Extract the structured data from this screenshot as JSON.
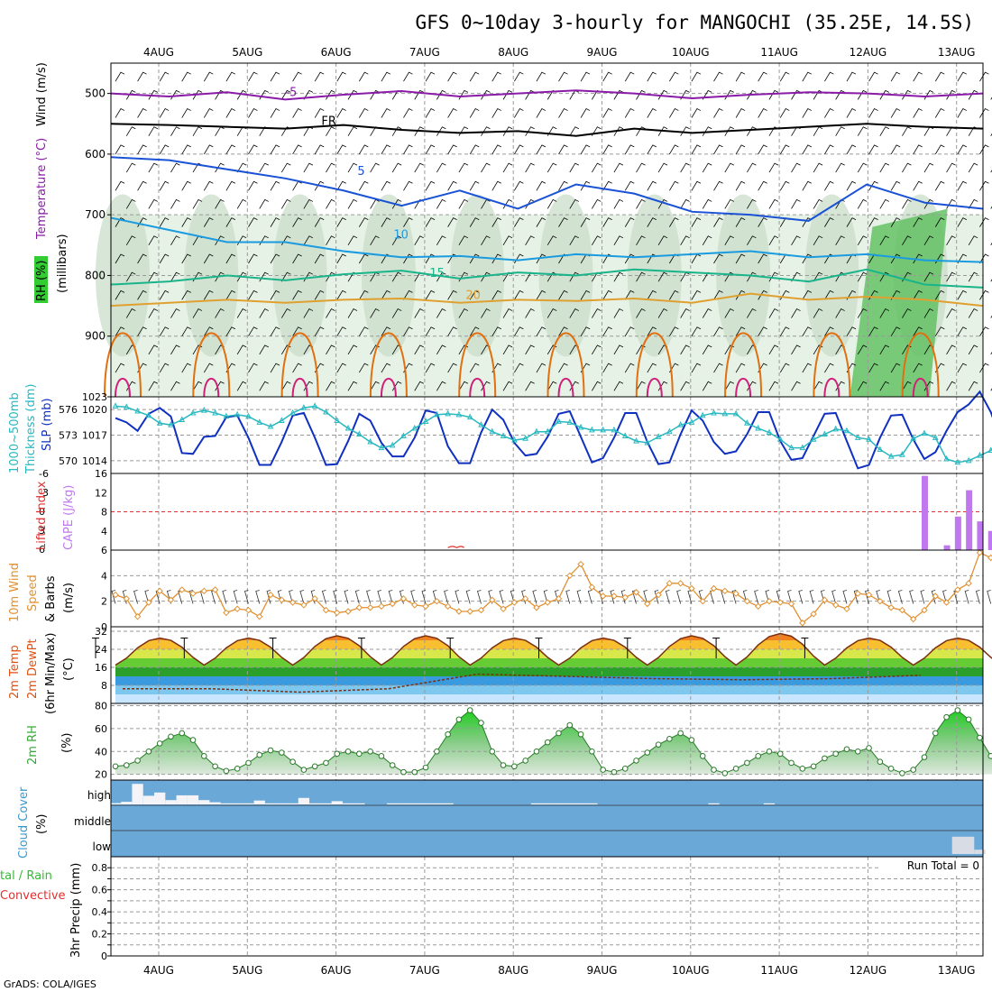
{
  "title": "GFS 0~10day 3-hourly for MANGOCHI (35.25E, 14.5S)",
  "footer": "GrADS: COLA/IGES",
  "dates": [
    "4AUG",
    "5AUG",
    "6AUG",
    "7AUG",
    "8AUG",
    "9AUG",
    "10AUG",
    "11AUG",
    "12AUG",
    "13AUG"
  ],
  "colors": {
    "frame": "#000000",
    "grid": "#9a9a9a",
    "purple": "#8a1aa8",
    "black": "#000000",
    "blue": "#1a52d6",
    "skyblue": "#1a9be0",
    "teal": "#19b48a",
    "orange": "#e0a030",
    "darkorange": "#e07010",
    "magenta": "#d0207a",
    "cyan": "#27b8c0",
    "navy": "#1030c0",
    "cape": "#c078ee",
    "wind": "#e09030",
    "cloud": "#6aa8d8",
    "rh": "#33bb33"
  },
  "chart_data": [
    {
      "type": "heatmap",
      "name": "pressure-level cross section",
      "ylabel_parts": [
        "Wind (m/s)",
        "Temperature (°C)",
        "RH (%)"
      ],
      "ylabel2": "(millibars)",
      "ylim": [
        1000,
        450
      ],
      "yticks": [
        500,
        600,
        700,
        800,
        900,
        1000
      ],
      "contours": [
        {
          "label": "-5",
          "level": -5,
          "color": "purple",
          "pressure": [
            500,
            505,
            498,
            510,
            502,
            496,
            505,
            500,
            495,
            500,
            508,
            502,
            498,
            500,
            505,
            500
          ]
        },
        {
          "label": "FR",
          "level": 0,
          "color": "black",
          "pressure": [
            550,
            552,
            555,
            558,
            552,
            560,
            565,
            562,
            570,
            558,
            565,
            560,
            555,
            550,
            555,
            558
          ]
        },
        {
          "label": "5",
          "level": 5,
          "color": "blue",
          "pressure": [
            605,
            610,
            625,
            640,
            660,
            685,
            660,
            690,
            650,
            665,
            695,
            700,
            710,
            650,
            680,
            690
          ]
        },
        {
          "label": "10",
          "level": 10,
          "color": "skyblue",
          "pressure": [
            705,
            725,
            745,
            745,
            760,
            770,
            768,
            775,
            765,
            770,
            765,
            760,
            770,
            765,
            775,
            778
          ]
        },
        {
          "label": "15",
          "level": 15,
          "color": "teal",
          "pressure": [
            815,
            810,
            800,
            808,
            798,
            792,
            805,
            795,
            800,
            790,
            795,
            800,
            810,
            790,
            815,
            820
          ]
        },
        {
          "label": "20",
          "level": 20,
          "color": "orange",
          "pressure": [
            850,
            845,
            840,
            845,
            840,
            838,
            845,
            840,
            842,
            838,
            845,
            830,
            840,
            835,
            840,
            850
          ]
        }
      ],
      "rh_contours": [
        "10",
        "30"
      ]
    },
    {
      "type": "line",
      "name": "thickness and SLP",
      "ylabel_left": "Thickness 1000~500mb (dm)",
      "ylabel_right": "SLP (mb)",
      "left_ticks": [
        570,
        573,
        576
      ],
      "right_ticks": [
        1014,
        1017,
        1020
      ],
      "left_top_label": "1023",
      "ylim_left": [
        568.5,
        577.5
      ],
      "series": [
        {
          "name": "SLP (mb)",
          "color": "navy",
          "axis": "right",
          "values": [
            1019,
            1018.5,
            1017.5,
            1019.5,
            1020.2,
            1019.2,
            1014.9,
            1014.8,
            1016.8,
            1016.9,
            1019.1,
            1019.3,
            1016.7,
            1013.5,
            1013.5,
            1016.2,
            1019.3,
            1019.6,
            1016.7,
            1013.5,
            1013.6,
            1016.3,
            1019.5,
            1018.7,
            1016.1,
            1014.5,
            1014.5,
            1016.7,
            1019.9,
            1019.6,
            1015.7,
            1013.7,
            1013.7,
            1017.3,
            1020,
            1018.8,
            1016.1,
            1014.6,
            1014.8,
            1016.8,
            1019.5,
            1019.8,
            1016.8,
            1013.8,
            1014.3,
            1016.7,
            1019.6,
            1019.6,
            1016.2,
            1013.6,
            1013.8,
            1017.1,
            1019.9,
            1018.7,
            1016.2,
            1014.8,
            1015.1,
            1017.1,
            1019.7,
            1019.7,
            1016.3,
            1014.1,
            1014.3,
            1016.9,
            1019.5,
            1019.6,
            1016.3,
            1013.1,
            1013.5,
            1016.7,
            1019.3,
            1019.4,
            1016.5,
            1014.2,
            1015,
            1017.5,
            1019.7,
            1020.6,
            1022.1,
            1019.7,
            1016,
            1016.8,
            1018.2,
            1019.8,
            1020.2
          ]
        },
        {
          "name": "1000-500mb thickness (dm)",
          "color": "cyan",
          "axis": "left",
          "values": [
            576.4,
            576.3,
            575.8,
            575.3,
            574.4,
            574.2,
            574.8,
            575.6,
            575.9,
            575.6,
            575.2,
            575.4,
            575.2,
            574.5,
            574,
            574.7,
            575.6,
            576.2,
            576.4,
            575.7,
            574.7,
            573.8,
            573.1,
            572.2,
            571.5,
            571.8,
            572.9,
            573.8,
            574.6,
            575.4,
            575.5,
            575.4,
            575.1,
            574.2,
            573.4,
            572.9,
            572.4,
            572.6,
            573.4,
            573.4,
            574.6,
            574.5,
            573.9,
            573.6,
            573.6,
            573.6,
            572.9,
            572.3,
            572.1,
            572.8,
            573.4,
            574.2,
            574.5,
            575.3,
            575.6,
            575.5,
            575.5,
            574.4,
            573.8,
            573.3,
            572.5,
            571.5,
            571.5,
            572.5,
            573.1,
            573.7,
            573.5,
            572.7,
            572.5,
            571.3,
            570.5,
            570.7,
            572.6,
            573.2,
            572.7,
            570.2,
            569.8,
            570,
            570.6,
            571.2,
            572.6,
            572.1,
            571.4,
            570.9,
            571.1
          ]
        }
      ]
    },
    {
      "type": "bar",
      "name": "lifted index and CAPE",
      "ylabel_left": "Lifted Index",
      "ylabel_right": "CAPE (J/kg)",
      "li_ticks": [
        "6",
        "3",
        "0",
        "-3",
        "-6"
      ],
      "cape_ticks": [
        4,
        8,
        12,
        16
      ],
      "ylim": [
        0,
        16
      ],
      "x_index": [
        73,
        75,
        76,
        77,
        78,
        79
      ],
      "values": [
        15.5,
        1,
        7,
        12.5,
        6,
        4
      ],
      "li_note": "small red marks near 7AUG"
    },
    {
      "type": "line",
      "name": "10m wind",
      "ylabel": "10m Wind Speed & Barbs (m/s)",
      "ylim": [
        0,
        6
      ],
      "yticks": [
        0,
        2,
        4,
        6
      ],
      "values": [
        2.5,
        2.2,
        0.8,
        1.9,
        2.8,
        2.1,
        2.9,
        2.6,
        2.8,
        2.9,
        1.1,
        1.4,
        1.3,
        0.8,
        2.5,
        2.1,
        1.9,
        1.7,
        2.2,
        1.3,
        1.1,
        1.2,
        1.5,
        1.5,
        1.6,
        1.8,
        2.2,
        1.7,
        1.6,
        2.0,
        1.6,
        1.2,
        1.2,
        1.3,
        2.1,
        1.4,
        1.9,
        2.2,
        1.5,
        1.9,
        2.2,
        4.0,
        4.9,
        3.1,
        2.4,
        2.4,
        2.3,
        2.7,
        1.8,
        2.5,
        3.4,
        3.4,
        3.0,
        2.0,
        3.0,
        2.8,
        2.6,
        2.0,
        1.6,
        2.0,
        1.9,
        1.8,
        0.3,
        1.0,
        2.1,
        1.7,
        1.4,
        2.6,
        2.5,
        2.0,
        1.5,
        1.3,
        0.6,
        1.3,
        2.4,
        1.9,
        2.9,
        3.4,
        5.8,
        5.4,
        4.8,
        4.9,
        4.1,
        2.2,
        2.4
      ]
    },
    {
      "type": "area",
      "name": "2m temperature and dewpoint",
      "ylabel": "2m Temp 2m DewPt (6hr Min/Max) (°C)",
      "ylim": [
        0,
        34
      ],
      "yticks": [
        8,
        16,
        24,
        32
      ],
      "temp_peak": [
        29,
        29,
        30,
        30,
        29,
        29,
        30,
        31,
        29
      ],
      "temp_min": 17,
      "dewpoint": [
        6.5,
        6.5,
        5,
        6.5,
        13,
        12,
        11,
        10.5,
        11,
        12.5
      ]
    },
    {
      "type": "area",
      "name": "2m relative humidity",
      "ylabel": "2m RH (%)",
      "ylim": [
        15,
        82
      ],
      "yticks": [
        20,
        40,
        60,
        80
      ],
      "values": [
        27,
        28,
        32,
        40,
        47,
        53,
        56,
        50,
        36,
        27,
        23,
        25,
        30,
        37,
        41,
        39,
        31,
        24,
        27,
        30,
        38,
        40,
        38,
        40,
        36,
        28,
        22,
        22,
        26,
        40,
        55,
        68,
        76,
        65,
        40,
        28,
        27,
        32,
        40,
        48,
        56,
        63,
        55,
        40,
        24,
        22,
        25,
        32,
        39,
        46,
        51,
        56,
        50,
        36,
        24,
        21,
        25,
        30,
        36,
        40,
        38,
        30,
        25,
        27,
        34,
        38,
        42,
        40,
        43,
        31,
        25,
        21,
        24,
        35,
        56,
        70,
        76,
        68,
        52,
        36,
        27,
        30,
        42,
        60,
        75,
        60
      ]
    },
    {
      "type": "bar",
      "name": "cloud cover",
      "ylabel": "Cloud Cover (%)",
      "levels": [
        "high",
        "middle",
        "low"
      ],
      "high_x": [
        0,
        1,
        2,
        3,
        4,
        5,
        6,
        7,
        8,
        9,
        10,
        11,
        12,
        13,
        14,
        15,
        16,
        17,
        18,
        19,
        20,
        21,
        22,
        25,
        26,
        27,
        28,
        29,
        30,
        38,
        39,
        40,
        41,
        42,
        43,
        54,
        59,
        82,
        84,
        91,
        92,
        93
      ],
      "high_pct": [
        6,
        12,
        95,
        40,
        55,
        20,
        42,
        42,
        20,
        10,
        5,
        5,
        5,
        18,
        5,
        5,
        5,
        30,
        5,
        5,
        15,
        5,
        5,
        5,
        5,
        5,
        5,
        5,
        5,
        5,
        5,
        5,
        5,
        5,
        5,
        5,
        5,
        5,
        30,
        5,
        5,
        5
      ],
      "low_x": [
        76,
        77,
        78,
        80,
        81,
        82
      ],
      "low_pct": [
        80,
        80,
        20,
        95,
        20,
        20
      ]
    },
    {
      "type": "bar",
      "name": "3hr precipitation",
      "ylabel_parts": [
        "Total / Rain",
        "Convective"
      ],
      "ylabel2": "3hr Precip (mm)",
      "ylim": [
        0,
        0.9
      ],
      "yticks": [
        "0",
        "0.2",
        "0.4",
        "0.6",
        "0.8"
      ],
      "yticks_all": [
        0,
        0.1,
        0.2,
        0.3,
        0.4,
        0.5,
        0.6,
        0.7,
        0.8
      ],
      "run_total": "Run Total = 0",
      "values": []
    }
  ],
  "labels": {
    "wind_ms": "Wind (m/s)",
    "temp_c": "Temperature (°C)",
    "rh_pct": "RH (%)",
    "millibars": "(millibars)",
    "thick1": "1000~500mb",
    "thick2": "Thickness (dm)",
    "slp": "SLP (mb)",
    "lifted": "Lifted Index",
    "cape": "CAPE (J/kg)",
    "wind10a": "10m Wind",
    "wind10b": "Speed",
    "wind10c": "& Barbs",
    "wind10d": "(m/s)",
    "t2a": "2m Temp",
    "t2b": "2m DewPt",
    "t2c": "(6hr Min/Max)",
    "t2d": "(°C)",
    "rh2a": "2m RH",
    "rh2b": "(%)",
    "cloud1": "Cloud Cover",
    "cloud2": "(%)",
    "high": "high",
    "middle": "middle",
    "low": "low",
    "precip_total": "tal / Rain",
    "precip_conv": "Convective",
    "precip_axis": "3hr Precip (mm)",
    "run_total": "Run Total = 0"
  }
}
